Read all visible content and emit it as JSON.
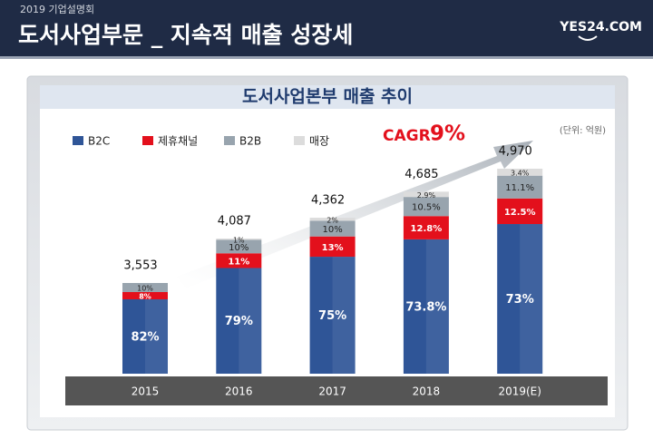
{
  "header": {
    "event": "2019 기업설명회",
    "title": "도서사업부문 _ 지속적 매출 성장세",
    "logo": "YES24.COM"
  },
  "chart_data": {
    "type": "bar",
    "stacked": true,
    "title": "도서사업본부 매출 추이",
    "unit": "(단위: 억원)",
    "annotations": [
      "CAGR",
      "9%"
    ],
    "categories": [
      "2015",
      "2016",
      "2017",
      "2018",
      "2019(E)"
    ],
    "totals": {
      "values": [
        3553,
        4087,
        4362,
        4685,
        4970
      ],
      "value_labels": [
        "3,553",
        "4,087",
        "4,362",
        "4,685",
        "4,970"
      ]
    },
    "series": [
      {
        "name": "B2C",
        "color": "#2f5597",
        "values": [
          82,
          79,
          75,
          73.8,
          73
        ],
        "value_labels": [
          "82%",
          "79%",
          "75%",
          "73.8%",
          "73%"
        ]
      },
      {
        "name": "제휴채널",
        "color": "#e3101c",
        "values": [
          8,
          11,
          13,
          12.8,
          12.5
        ],
        "value_labels": [
          "8%",
          "11%",
          "13%",
          "12.8%",
          "12.5%"
        ]
      },
      {
        "name": "B2B",
        "color": "#98a4ae",
        "values": [
          10,
          10,
          10,
          10.5,
          11.1
        ],
        "value_labels": [
          "10%",
          "10%",
          "10%",
          "10.5%",
          "11.1%"
        ]
      },
      {
        "name": "매장",
        "color": "#dcdcdc",
        "values": [
          null,
          1,
          2,
          2.9,
          3.4
        ],
        "value_labels": [
          null,
          "1%",
          "2%",
          "2.9%",
          "3.4%"
        ]
      }
    ]
  }
}
